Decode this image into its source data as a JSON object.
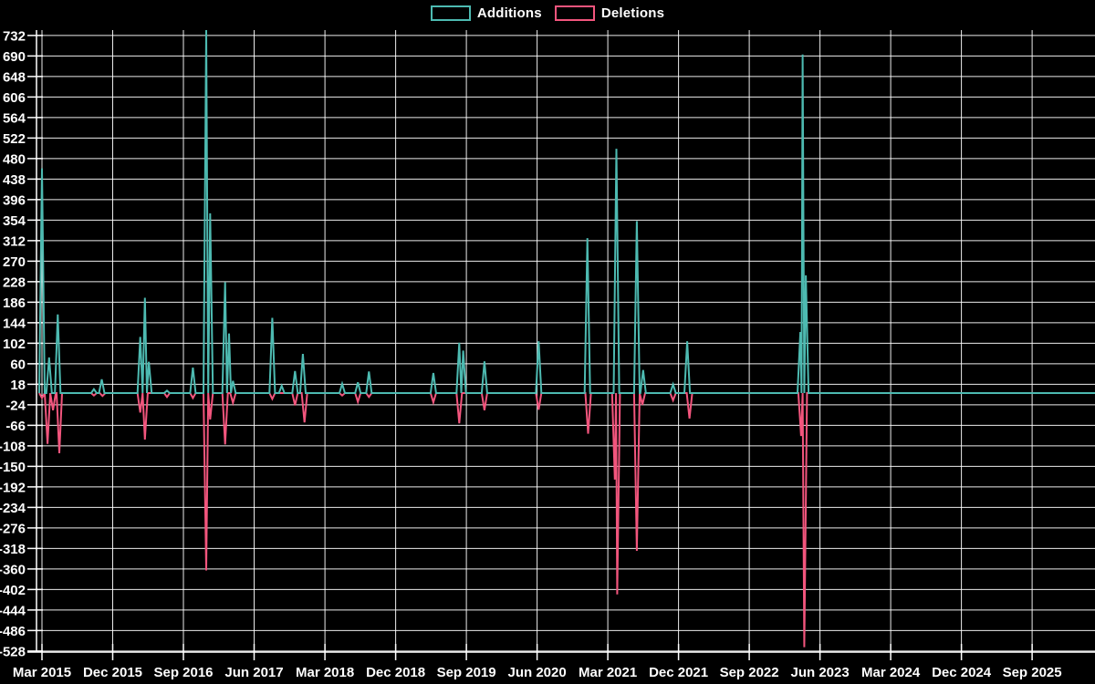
{
  "colors": {
    "background": "#000000",
    "grid": "#ffffff",
    "text": "#ffffff",
    "additions": "#4dbab1",
    "deletions": "#f2557d"
  },
  "legend": {
    "items": [
      {
        "id": "additions",
        "label": "Additions",
        "color": "#4dbab1"
      },
      {
        "id": "deletions",
        "label": "Deletions",
        "color": "#f2557d"
      }
    ]
  },
  "chart_data": {
    "type": "line",
    "title": "",
    "xlabel": "",
    "ylabel": "",
    "grid": true,
    "legend_position": "top-center",
    "x_axis": {
      "unit": "months since Mar 2015",
      "domain_months": [
        -0.7,
        134
      ],
      "tick_months": [
        0,
        9,
        18,
        27,
        36,
        45,
        54,
        63,
        72,
        81,
        90,
        99,
        108,
        117,
        126
      ],
      "tick_labels": [
        "Mar 2015",
        "Dec 2015",
        "Sep 2016",
        "Jun 2017",
        "Mar 2018",
        "Dec 2018",
        "Sep 2019",
        "Jun 2020",
        "Mar 2021",
        "Dec 2021",
        "Sep 2022",
        "Jun 2023",
        "Mar 2024",
        "Dec 2024",
        "Sep 2025"
      ]
    },
    "y_axis": {
      "min": -528,
      "max": 732,
      "step": 42,
      "tick_values": [
        732,
        690,
        648,
        606,
        564,
        522,
        480,
        438,
        396,
        354,
        312,
        270,
        228,
        186,
        144,
        102,
        60,
        18,
        -24,
        -66,
        -108,
        -150,
        -192,
        -234,
        -276,
        -318,
        -360,
        -402,
        -444,
        -486,
        -528
      ]
    },
    "series": [
      {
        "name": "Additions",
        "color": "#4dbab1",
        "baseline": 0,
        "spikes": [
          [
            0,
            460
          ],
          [
            0.9,
            73
          ],
          [
            2,
            161
          ],
          [
            6.6,
            8
          ],
          [
            7.6,
            28
          ],
          [
            12.5,
            115
          ],
          [
            13.1,
            195
          ],
          [
            13.6,
            64
          ],
          [
            15.9,
            5
          ],
          [
            19.2,
            52
          ],
          [
            20.9,
            743
          ],
          [
            21.4,
            368
          ],
          [
            23.3,
            227
          ],
          [
            23.8,
            122
          ],
          [
            24.3,
            25
          ],
          [
            29.3,
            154
          ],
          [
            30.5,
            15
          ],
          [
            32.2,
            45
          ],
          [
            33.2,
            80
          ],
          [
            38.2,
            19
          ],
          [
            40.2,
            22
          ],
          [
            41.6,
            44
          ],
          [
            49.8,
            41
          ],
          [
            53.1,
            103
          ],
          [
            53.6,
            87
          ],
          [
            56.3,
            65
          ],
          [
            63.2,
            106
          ],
          [
            69.4,
            317
          ],
          [
            73.1,
            500
          ],
          [
            75.7,
            352
          ],
          [
            76.5,
            47
          ],
          [
            80.3,
            18
          ],
          [
            82.1,
            106
          ],
          [
            96.5,
            125
          ],
          [
            96.8,
            693
          ],
          [
            97.2,
            241
          ]
        ]
      },
      {
        "name": "Deletions",
        "color": "#f2557d",
        "baseline": 0,
        "spikes": [
          [
            0,
            -10
          ],
          [
            0.7,
            -104
          ],
          [
            1.4,
            -35
          ],
          [
            2.2,
            -123
          ],
          [
            6.6,
            -5
          ],
          [
            7.7,
            -6
          ],
          [
            12.5,
            -40
          ],
          [
            13.1,
            -95
          ],
          [
            15.9,
            -8
          ],
          [
            19.2,
            -10
          ],
          [
            20.9,
            -363
          ],
          [
            21.4,
            -54
          ],
          [
            23.3,
            -105
          ],
          [
            24.3,
            -20
          ],
          [
            29.3,
            -12
          ],
          [
            32.2,
            -25
          ],
          [
            33.4,
            -60
          ],
          [
            38.2,
            -5
          ],
          [
            40.2,
            -18
          ],
          [
            41.6,
            -8
          ],
          [
            49.8,
            -19
          ],
          [
            53.1,
            -62
          ],
          [
            56.3,
            -35
          ],
          [
            63.2,
            -34
          ],
          [
            69.5,
            -83
          ],
          [
            72.9,
            -177
          ],
          [
            73.2,
            -412
          ],
          [
            75.7,
            -323
          ],
          [
            76.4,
            -24
          ],
          [
            80.3,
            -15
          ],
          [
            82.4,
            -52
          ],
          [
            96.6,
            -88
          ],
          [
            97,
            -520
          ]
        ]
      }
    ]
  }
}
